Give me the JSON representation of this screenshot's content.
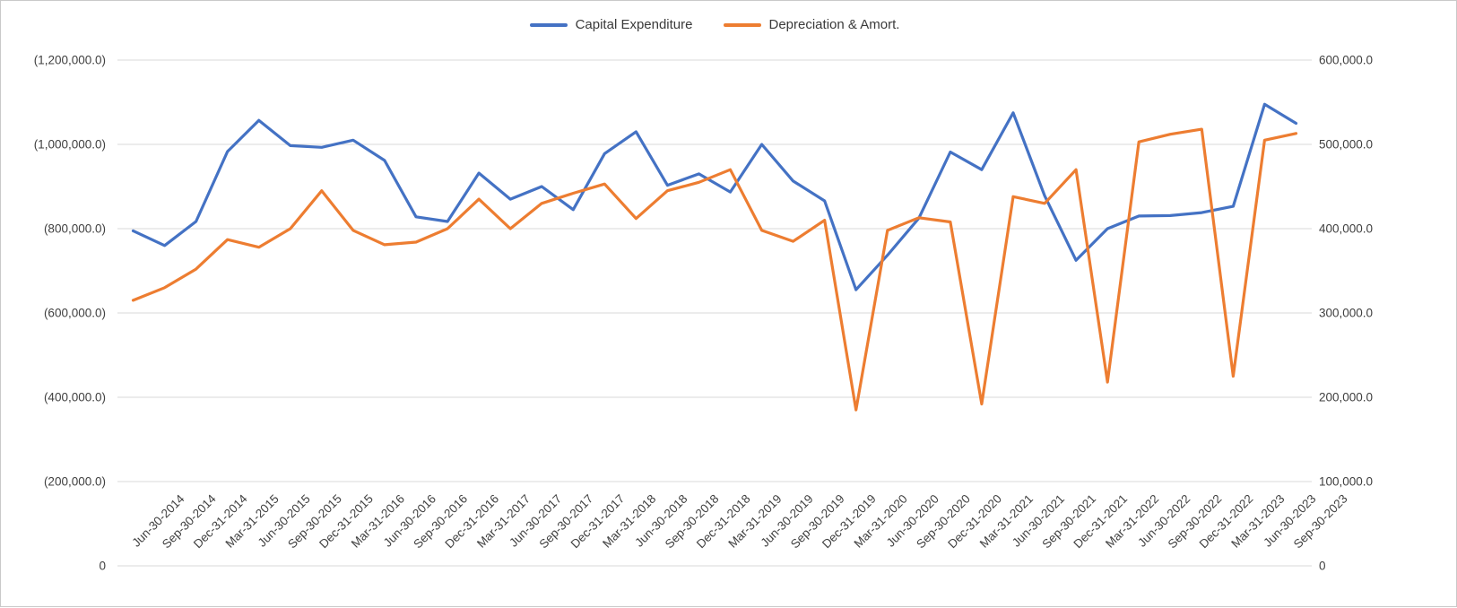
{
  "chart_data": {
    "type": "line",
    "title": "",
    "legend": {
      "position": "top",
      "entries": [
        "Capital Expenditure",
        "Depreciation & Amort."
      ]
    },
    "categories": [
      "Jun-30-2014",
      "Sep-30-2014",
      "Dec-31-2014",
      "Mar-31-2015",
      "Jun-30-2015",
      "Sep-30-2015",
      "Dec-31-2015",
      "Mar-31-2016",
      "Jun-30-2016",
      "Sep-30-2016",
      "Dec-31-2016",
      "Mar-31-2017",
      "Jun-30-2017",
      "Sep-30-2017",
      "Dec-31-2017",
      "Mar-31-2018",
      "Jun-30-2018",
      "Sep-30-2018",
      "Dec-31-2018",
      "Mar-31-2019",
      "Jun-30-2019",
      "Sep-30-2019",
      "Dec-31-2019",
      "Mar-31-2020",
      "Jun-30-2020",
      "Sep-30-2020",
      "Dec-31-2020",
      "Mar-31-2021",
      "Jun-30-2021",
      "Sep-30-2021",
      "Dec-31-2021",
      "Mar-31-2022",
      "Jun-30-2022",
      "Sep-30-2022",
      "Dec-31-2022",
      "Mar-31-2023",
      "Jun-30-2023",
      "Sep-30-2023"
    ],
    "series": [
      {
        "name": "Capital Expenditure",
        "color": "#4472C4",
        "axis": "left",
        "values": [
          -795000,
          -760000,
          -817000,
          -983000,
          -1057000,
          -997000,
          -993000,
          -1010000,
          -962000,
          -828000,
          -817000,
          -932000,
          -870000,
          -900000,
          -845000,
          -978000,
          -1030000,
          -903000,
          -930000,
          -887000,
          -1000000,
          -913000,
          -866000,
          -655000,
          -737000,
          -825000,
          -982000,
          -940000,
          -1075000,
          -878000,
          -725000,
          -800000,
          -830000,
          -831000,
          -838000,
          -853000,
          -1095000,
          -1050000
        ]
      },
      {
        "name": "Depreciation & Amort.",
        "color": "#ED7D31",
        "axis": "right",
        "values": [
          315000,
          330000,
          352000,
          387000,
          378000,
          400000,
          445000,
          398000,
          381000,
          384000,
          400000,
          435000,
          400000,
          430000,
          442000,
          453000,
          412000,
          445000,
          455000,
          470000,
          398000,
          385000,
          410000,
          185000,
          398000,
          413000,
          408000,
          192000,
          438000,
          430000,
          470000,
          218000,
          503000,
          512000,
          518000,
          225000,
          505000,
          513000
        ]
      }
    ],
    "left_axis": {
      "min": -1200000,
      "max": 0,
      "reversed": true,
      "tick_labels": [
        "(1,200,000.0)",
        "(1,000,000.0)",
        "(800,000.0)",
        "(600,000.0)",
        "(400,000.0)",
        "(200,000.0)",
        "0"
      ]
    },
    "right_axis": {
      "min": 0,
      "max": 600000,
      "reversed": false,
      "tick_labels": [
        "600,000.0",
        "500,000.0",
        "400,000.0",
        "300,000.0",
        "200,000.0",
        "100,000.0",
        "0"
      ]
    },
    "grid": true,
    "grid_color": "#D9D9D9",
    "axis_text_color": "#404040",
    "x_label_rotation_deg": 45
  }
}
